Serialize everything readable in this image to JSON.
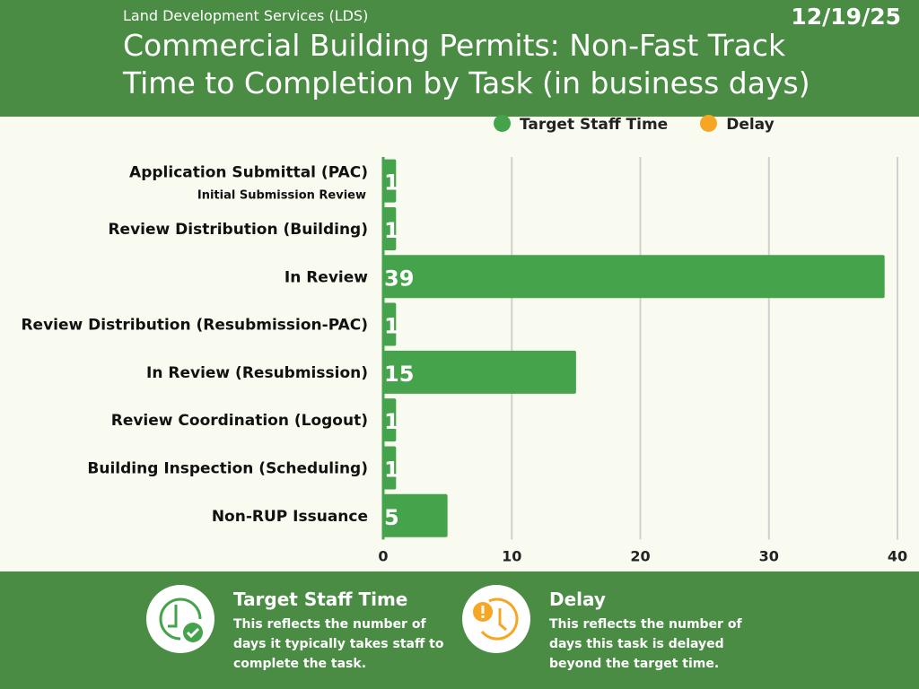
{
  "header": {
    "org": "Land Development Services (LDS)",
    "date": "12/19/25",
    "title_line1": "Commercial Building Permits: Non-Fast Track",
    "title_line2": "Time to Completion by Task (in business days)"
  },
  "colors": {
    "header": "#4a8c44",
    "target": "#45a34b",
    "delay": "#f5a623"
  },
  "chart_data": {
    "type": "bar",
    "orientation": "horizontal",
    "stacked": true,
    "categories": [
      "Application Submittal (PAC)",
      "Review Distribution (Building)",
      "In Review",
      "Review Distribution (Resubmission-PAC)",
      "In Review (Resubmission)",
      "Review Coordination (Logout)",
      "Building Inspection (Scheduling)",
      "Non-RUP Issuance"
    ],
    "category_note": "Initial Submission Review",
    "series": [
      {
        "name": "Target Staff Time",
        "values": [
          1,
          1,
          39,
          1,
          15,
          1,
          1,
          5
        ]
      },
      {
        "name": "Delay",
        "values": [
          0,
          0,
          0,
          0,
          0,
          0,
          0,
          0
        ]
      }
    ],
    "xlim": [
      0,
      40
    ],
    "xticks": [
      "0",
      "10",
      "20",
      "30",
      "40"
    ],
    "grid": "vertical",
    "legend": "top"
  },
  "footer": {
    "target": {
      "title": "Target Staff Time",
      "text": "This reflects the number of days it typically takes staff to complete the task.",
      "icon": "clock-check-icon"
    },
    "delay": {
      "title": "Delay",
      "text": "This reflects the number of days this task is delayed beyond the target time.",
      "icon": "clock-alert-icon"
    }
  }
}
